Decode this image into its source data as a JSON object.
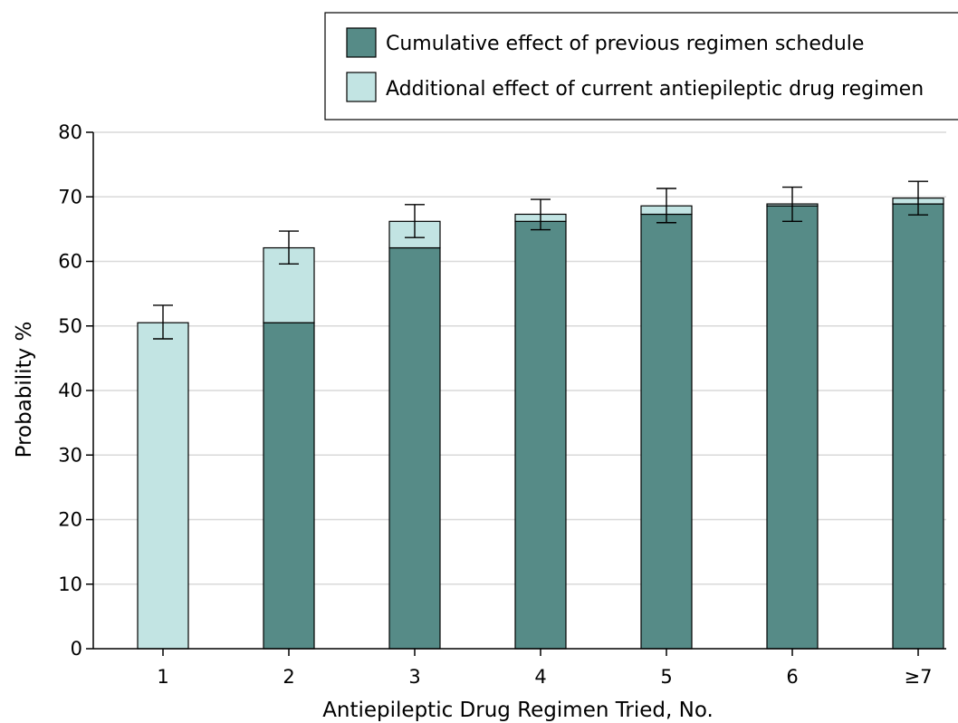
{
  "chart_data": {
    "type": "bar",
    "stacked": true,
    "xlabel": "Antiepileptic Drug Regimen Tried, No.",
    "ylabel": "Probability %",
    "ylim": [
      0,
      80
    ],
    "yticks": [
      0,
      10,
      20,
      30,
      40,
      50,
      60,
      70,
      80
    ],
    "grid": true,
    "legend_position": "top-right",
    "categories": [
      "1",
      "2",
      "3",
      "4",
      "5",
      "6",
      "≥7"
    ],
    "series": [
      {
        "name": "Cumulative effect of previous regimen schedule",
        "color": "#568b87",
        "values": [
          0,
          50.5,
          62.1,
          66.2,
          67.3,
          68.6,
          68.9
        ]
      },
      {
        "name": "Additional effect of current antiepileptic drug regimen",
        "color": "#c2e4e3",
        "values": [
          50.5,
          11.6,
          4.1,
          1.1,
          1.3,
          0.3,
          0.9
        ]
      }
    ],
    "totals": [
      50.5,
      62.1,
      66.2,
      67.3,
      68.6,
      68.9,
      69.8
    ],
    "error_bars": {
      "lower": [
        48.0,
        59.6,
        63.7,
        64.9,
        66.0,
        66.2,
        67.2
      ],
      "upper": [
        53.2,
        64.7,
        68.8,
        69.6,
        71.3,
        71.5,
        72.4
      ]
    }
  }
}
